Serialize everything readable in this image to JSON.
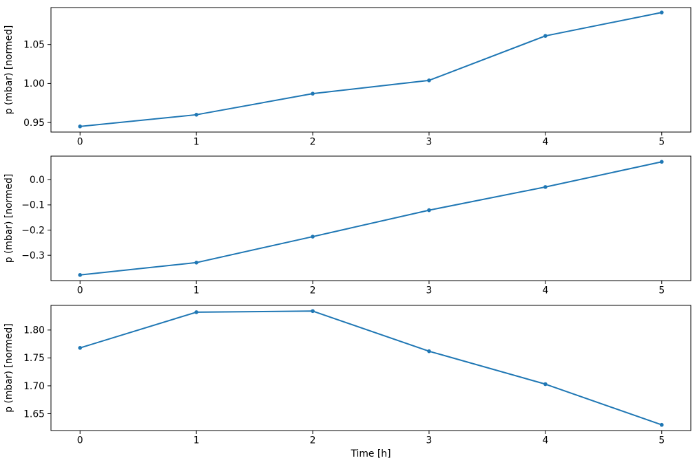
{
  "figure": {
    "background": "#ffffff",
    "line_color": "#1f77b4",
    "spine_color": "#000000",
    "text_color": "#000000"
  },
  "chart_data": [
    {
      "type": "line",
      "title": "",
      "xlabel": "",
      "ylabel": "p (mbar) [normed]",
      "marker": "point",
      "grid": false,
      "legend": null,
      "x": [
        0,
        1,
        2,
        3,
        4,
        5
      ],
      "y": [
        0.945,
        0.96,
        0.987,
        1.004,
        1.061,
        1.091
      ],
      "xlim": [
        -0.25,
        5.25
      ],
      "ylim": [
        0.9378,
        1.0973
      ],
      "xticks": [
        0,
        1,
        2,
        3,
        4,
        5
      ],
      "xtick_labels": [
        "0",
        "1",
        "2",
        "3",
        "4",
        "5"
      ],
      "yticks": [
        0.95,
        1.0,
        1.05
      ],
      "ytick_labels": [
        "0.95",
        "1.00",
        "1.05"
      ]
    },
    {
      "type": "line",
      "title": "",
      "xlabel": "",
      "ylabel": "p (mbar) [normed]",
      "marker": "point",
      "grid": false,
      "legend": null,
      "x": [
        0,
        1,
        2,
        3,
        4,
        5
      ],
      "y": [
        -0.378,
        -0.329,
        -0.226,
        -0.121,
        -0.029,
        0.071
      ],
      "xlim": [
        -0.25,
        5.25
      ],
      "ylim": [
        -0.4005,
        0.0935
      ],
      "xticks": [
        0,
        1,
        2,
        3,
        4,
        5
      ],
      "xtick_labels": [
        "0",
        "1",
        "2",
        "3",
        "4",
        "5"
      ],
      "yticks": [
        -0.3,
        -0.2,
        -0.1,
        0.0
      ],
      "ytick_labels": [
        "−0.3",
        "−0.2",
        "−0.1",
        "0.0"
      ]
    },
    {
      "type": "line",
      "title": "",
      "xlabel": "Time [h]",
      "ylabel": "p (mbar) [normed]",
      "marker": "point",
      "grid": false,
      "legend": null,
      "x": [
        0,
        1,
        2,
        3,
        4,
        5
      ],
      "y": [
        1.768,
        1.832,
        1.834,
        1.762,
        1.703,
        1.63
      ],
      "xlim": [
        -0.25,
        5.25
      ],
      "ylim": [
        1.6198,
        1.8442
      ],
      "xticks": [
        0,
        1,
        2,
        3,
        4,
        5
      ],
      "xtick_labels": [
        "0",
        "1",
        "2",
        "3",
        "4",
        "5"
      ],
      "yticks": [
        1.65,
        1.7,
        1.75,
        1.8
      ],
      "ytick_labels": [
        "1.65",
        "1.70",
        "1.75",
        "1.80"
      ]
    }
  ]
}
